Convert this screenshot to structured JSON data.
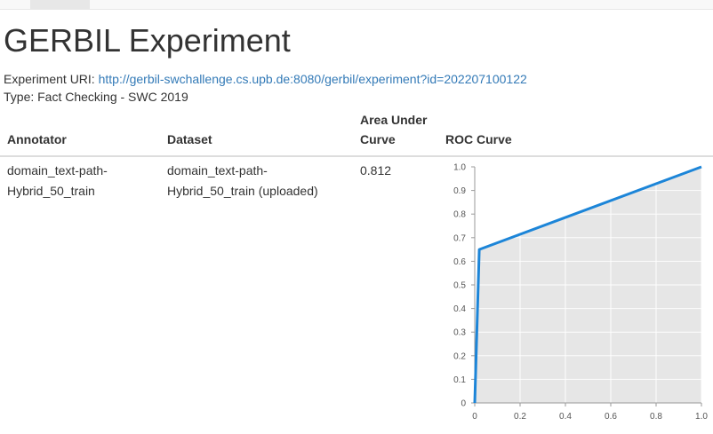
{
  "nav": {
    "active_tab": ""
  },
  "page": {
    "title": "GERBIL Experiment",
    "uri_label": "Experiment URI:",
    "uri": "http://gerbil-swchallenge.cs.upb.de:8080/gerbil/experiment?id=202207100122",
    "type_line": "Type: Fact Checking - SWC 2019"
  },
  "table": {
    "headers": {
      "annotator": "Annotator",
      "dataset": "Dataset",
      "auc_line1": "Area Under",
      "auc_line2": "Curve",
      "roc": "ROC Curve"
    },
    "rows": [
      {
        "annotator_line1": "domain_text-path-",
        "annotator_line2": "Hybrid_50_train",
        "dataset_line1": "domain_text-path-",
        "dataset_line2": "Hybrid_50_train (uploaded)",
        "auc": "0.812"
      }
    ]
  },
  "chart_data": {
    "type": "area",
    "title": "",
    "xlabel": "",
    "ylabel": "",
    "xlim": [
      0,
      1
    ],
    "ylim": [
      0,
      1
    ],
    "x_ticks": [
      "0",
      "0.2",
      "0.4",
      "0.6",
      "0.8",
      "1.0"
    ],
    "y_ticks": [
      "0",
      "0.1",
      "0.2",
      "0.3",
      "0.4",
      "0.5",
      "0.6",
      "0.7",
      "0.8",
      "0.9",
      "1.0"
    ],
    "grid": true,
    "series": [
      {
        "x": [
          0,
          0.02,
          1.0
        ],
        "y": [
          0,
          0.65,
          1.0
        ],
        "color": "#1c85d8",
        "fill": "#e6e6e6"
      }
    ]
  }
}
